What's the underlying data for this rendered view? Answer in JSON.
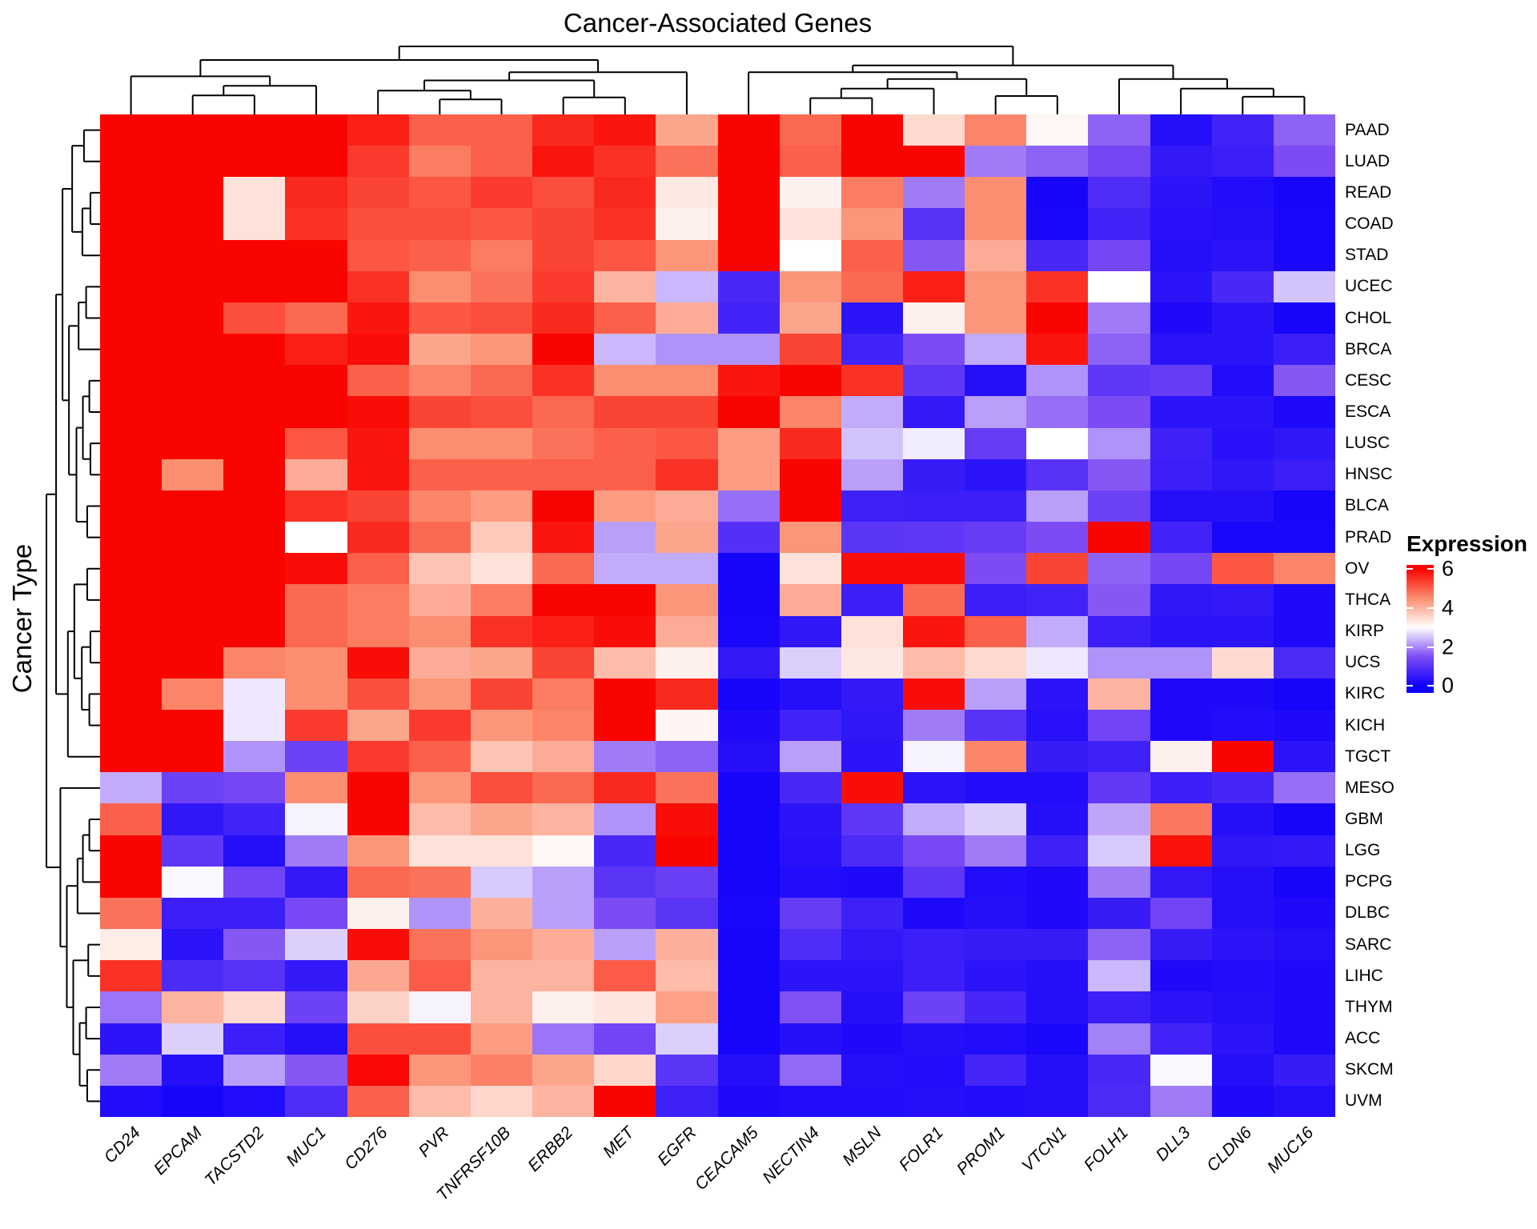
{
  "title": "Cancer-Associated Genes",
  "y_axis_label": "Cancer Type",
  "legend": {
    "title": "Expression",
    "ticks": [
      "6",
      "4",
      "2",
      "0"
    ]
  },
  "chart_data": {
    "type": "heatmap",
    "title": "Cancer-Associated Genes",
    "ylabel": "Cancer Type",
    "legend_title": "Expression",
    "legend_ticks": [
      6,
      4,
      2,
      0
    ],
    "value_domain": [
      0,
      6
    ],
    "color_scale": {
      "low": "#0F00FA",
      "mid": "#FFFFFF",
      "high": "#FA0400",
      "midpoint": 3,
      "stops": [
        [
          0,
          "#0F00FA"
        ],
        [
          1.5,
          "#7C4BF4"
        ],
        [
          3,
          "#FFFFFF"
        ],
        [
          4.5,
          "#FB8E70"
        ],
        [
          6,
          "#FA0400"
        ]
      ]
    },
    "columns": [
      "CD24",
      "EPCAM",
      "TACSTD2",
      "MUC1",
      "CD276",
      "PVR",
      "TNFRSF10B",
      "ERBB2",
      "MET",
      "EGFR",
      "CEACAM5",
      "NECTIN4",
      "MSLN",
      "FOLR1",
      "PROM1",
      "VTCN1",
      "FOLH1",
      "DLL3",
      "CLDN6",
      "MUC16"
    ],
    "rows": [
      "PAAD",
      "LUAD",
      "READ",
      "COAD",
      "STAD",
      "UCEC",
      "CHOL",
      "BRCA",
      "CESC",
      "ESCA",
      "LUSC",
      "HNSC",
      "BLCA",
      "PRAD",
      "OV",
      "THCA",
      "KIRP",
      "UCS",
      "KIRC",
      "KICH",
      "TGCT",
      "MESO",
      "GBM",
      "LGG",
      "PCPG",
      "DLBC",
      "SARC",
      "LIHC",
      "THYM",
      "ACC",
      "SKCM",
      "UVM"
    ],
    "values": [
      [
        6,
        6,
        6,
        6,
        5.7,
        5.0,
        5.0,
        5.6,
        5.8,
        4.2,
        6,
        4.9,
        6,
        3.5,
        4.6,
        3.1,
        1.7,
        0.3,
        0.7,
        1.7
      ],
      [
        6,
        6,
        6,
        6,
        5.4,
        4.7,
        5.0,
        5.8,
        5.5,
        4.8,
        6,
        5.0,
        6,
        6,
        1.9,
        1.7,
        1.4,
        0.5,
        0.6,
        1.5
      ],
      [
        6,
        6,
        3.4,
        5.6,
        5.3,
        5.1,
        5.4,
        5.2,
        5.6,
        3.3,
        6,
        3.2,
        4.7,
        1.9,
        4.5,
        0.1,
        0.9,
        0.4,
        0.25,
        0.1
      ],
      [
        6,
        6,
        3.4,
        5.5,
        5.2,
        5.2,
        5.1,
        5.3,
        5.5,
        3.2,
        6,
        3.4,
        4.4,
        1.0,
        4.5,
        0.15,
        0.7,
        0.35,
        0.3,
        0.15
      ],
      [
        6,
        6,
        6,
        6,
        5.1,
        5.0,
        4.7,
        5.3,
        5.1,
        4.4,
        6,
        3.0,
        5.0,
        1.6,
        4.1,
        0.8,
        1.4,
        0.3,
        0.4,
        0.15
      ],
      [
        6,
        6,
        6,
        6,
        5.5,
        4.5,
        4.8,
        5.4,
        4.0,
        2.4,
        0.8,
        4.4,
        4.9,
        5.7,
        4.4,
        5.5,
        3.0,
        0.4,
        0.8,
        2.5
      ],
      [
        6,
        6,
        5.2,
        4.9,
        5.8,
        5.1,
        5.2,
        5.6,
        5.0,
        4.1,
        0.7,
        4.2,
        0.4,
        3.2,
        4.4,
        6,
        1.9,
        0.2,
        0.4,
        0.1
      ],
      [
        6,
        6,
        6,
        5.7,
        5.9,
        4.2,
        4.4,
        6,
        2.4,
        2.1,
        2.1,
        5.3,
        0.7,
        1.5,
        2.3,
        5.8,
        1.7,
        0.4,
        0.4,
        0.6
      ],
      [
        6,
        6,
        6,
        6,
        5.0,
        4.6,
        4.9,
        5.5,
        4.5,
        4.5,
        5.8,
        6,
        5.5,
        1.1,
        0.3,
        2.1,
        1.1,
        1.2,
        0.25,
        1.6
      ],
      [
        6,
        6,
        6,
        6,
        5.9,
        5.3,
        5.2,
        4.9,
        5.3,
        5.3,
        6,
        4.6,
        2.3,
        0.5,
        2.2,
        1.8,
        1.5,
        0.4,
        0.4,
        0.2
      ],
      [
        6,
        6,
        6,
        5.1,
        5.8,
        4.5,
        4.5,
        4.8,
        5.0,
        5.1,
        4.3,
        5.6,
        2.5,
        2.85,
        1.2,
        3.0,
        2.1,
        0.65,
        0.35,
        0.45
      ],
      [
        6,
        4.5,
        6,
        4.1,
        5.8,
        5.0,
        5.0,
        5.0,
        5.0,
        5.5,
        4.3,
        6,
        2.2,
        0.55,
        0.4,
        1.0,
        1.6,
        0.6,
        0.45,
        0.6
      ],
      [
        6,
        6,
        6,
        5.5,
        5.3,
        4.6,
        4.3,
        6,
        4.3,
        4.1,
        1.8,
        6,
        0.65,
        0.6,
        0.6,
        2.2,
        1.3,
        0.3,
        0.3,
        0.1
      ],
      [
        6,
        6,
        6,
        3.0,
        5.6,
        4.9,
        3.7,
        5.8,
        2.2,
        4.2,
        0.95,
        4.4,
        1.05,
        1.1,
        1.2,
        1.5,
        6,
        0.7,
        0.15,
        0.15
      ],
      [
        6,
        6,
        6,
        5.9,
        5.0,
        3.8,
        3.4,
        4.9,
        2.3,
        2.3,
        0.1,
        3.4,
        5.9,
        5.9,
        1.5,
        5.3,
        1.7,
        1.4,
        5.1,
        4.6
      ],
      [
        6,
        6,
        6,
        4.9,
        4.7,
        4.1,
        4.7,
        6,
        6,
        4.4,
        0.1,
        4.1,
        0.6,
        4.9,
        0.6,
        0.7,
        1.6,
        0.45,
        0.5,
        0.2
      ],
      [
        6,
        6,
        6,
        4.9,
        4.7,
        4.5,
        5.5,
        5.7,
        5.9,
        4.1,
        0.15,
        0.45,
        3.4,
        5.8,
        5.0,
        2.3,
        0.6,
        0.4,
        0.4,
        0.2
      ],
      [
        6,
        6,
        4.6,
        4.5,
        5.9,
        4.1,
        4.2,
        5.3,
        3.9,
        3.2,
        0.5,
        2.6,
        3.3,
        3.9,
        3.5,
        2.8,
        2.1,
        2.1,
        3.5,
        0.85
      ],
      [
        6,
        4.6,
        2.8,
        4.5,
        5.2,
        4.4,
        5.3,
        4.7,
        6,
        5.6,
        0.1,
        0.3,
        0.5,
        5.9,
        2.2,
        0.4,
        4.0,
        0.2,
        0.2,
        0.1
      ],
      [
        6,
        6,
        2.8,
        5.4,
        4.2,
        5.4,
        4.4,
        4.6,
        6,
        3.15,
        0.2,
        0.7,
        0.45,
        1.9,
        1.0,
        0.35,
        1.35,
        0.2,
        0.25,
        0.2
      ],
      [
        6,
        6,
        2.1,
        1.3,
        5.4,
        5.0,
        3.8,
        4.1,
        1.9,
        1.7,
        0.3,
        2.2,
        0.4,
        2.9,
        4.6,
        0.55,
        0.65,
        3.2,
        6,
        0.4
      ],
      [
        2.3,
        1.3,
        1.4,
        4.5,
        6,
        4.4,
        5.2,
        4.9,
        5.6,
        4.8,
        0.1,
        0.8,
        5.9,
        0.4,
        0.25,
        0.25,
        1.15,
        0.6,
        0.75,
        1.8
      ],
      [
        5.0,
        0.45,
        0.7,
        2.9,
        6,
        3.9,
        4.2,
        4.0,
        2.1,
        5.9,
        0.1,
        0.4,
        1.1,
        2.3,
        2.6,
        0.3,
        2.25,
        4.75,
        0.3,
        0.1
      ],
      [
        6,
        1.1,
        0.3,
        1.9,
        4.4,
        3.4,
        3.4,
        3.1,
        0.8,
        6,
        0.1,
        0.35,
        0.85,
        1.45,
        1.9,
        0.65,
        2.55,
        5.85,
        0.45,
        0.5
      ],
      [
        6,
        2.95,
        1.35,
        0.5,
        4.9,
        4.8,
        2.55,
        2.2,
        1.05,
        1.25,
        0.1,
        0.25,
        0.2,
        1.1,
        0.25,
        0.2,
        1.9,
        0.5,
        0.3,
        0.1
      ],
      [
        4.8,
        0.6,
        0.6,
        1.45,
        3.2,
        2.1,
        4.05,
        2.2,
        1.5,
        1.05,
        0.15,
        1.2,
        0.65,
        0.2,
        0.3,
        0.2,
        0.55,
        1.35,
        0.3,
        0.2
      ],
      [
        3.25,
        0.4,
        1.6,
        2.6,
        5.9,
        4.8,
        4.4,
        4.1,
        2.2,
        4.05,
        0.1,
        0.9,
        0.5,
        0.6,
        0.55,
        0.55,
        1.7,
        0.55,
        0.4,
        0.3
      ],
      [
        5.5,
        0.85,
        1.0,
        0.5,
        4.15,
        5.05,
        4.0,
        4.0,
        5.05,
        3.9,
        0.1,
        0.4,
        0.4,
        0.6,
        0.4,
        0.3,
        2.4,
        0.2,
        0.25,
        0.2
      ],
      [
        1.85,
        4.0,
        3.5,
        1.3,
        3.6,
        2.9,
        4.0,
        3.2,
        3.35,
        4.25,
        0.1,
        1.55,
        0.3,
        1.3,
        0.75,
        0.3,
        0.6,
        0.4,
        0.3,
        0.2
      ],
      [
        0.4,
        2.6,
        0.6,
        0.3,
        5.2,
        5.2,
        4.3,
        1.85,
        1.35,
        2.6,
        0.1,
        0.3,
        0.2,
        0.3,
        0.25,
        0.15,
        1.95,
        0.7,
        0.4,
        0.2
      ],
      [
        1.9,
        0.3,
        2.2,
        1.6,
        5.95,
        4.4,
        4.65,
        4.2,
        3.55,
        1.05,
        0.3,
        1.75,
        0.3,
        0.25,
        0.75,
        0.3,
        0.8,
        2.95,
        0.3,
        0.55
      ],
      [
        0.25,
        0.1,
        0.25,
        0.9,
        5.0,
        3.9,
        3.55,
        4.0,
        6,
        0.65,
        0.2,
        0.25,
        0.25,
        0.3,
        0.25,
        0.3,
        0.85,
        1.9,
        0.2,
        0.3
      ]
    ],
    "col_dendrogram": [
      [
        [
          "CD24",
          [
            [
              "EPCAM",
              "TACSTD2",
              0.28
            ],
            "MUC1",
            0.42
          ],
          0.56
        ],
        [
          [
            [
              "CD276",
              [
                "PVR",
                "TNFRSF10B",
                0.22
              ],
              0.35
            ],
            [
              "ERBB2",
              "MET",
              0.25
            ],
            0.5
          ],
          "EGFR",
          0.62
        ],
        0.8
      ],
      [
        [
          "CEACAM5",
          [
            [
              [
                "NECTIN4",
                "MSLN",
                0.24
              ],
              "FOLR1",
              0.38
            ],
            [
              "PROM1",
              "VTCN1",
              0.27
            ],
            0.52
          ],
          0.62
        ],
        [
          "FOLH1",
          [
            "DLL3",
            [
              "CLDN6",
              "MUC16",
              0.26
            ],
            0.38
          ],
          0.52
        ],
        0.72
      ],
      1.0
    ],
    "row_dendrogram": [
      [
        [
          [
            [
              "PAAD",
              "LUAD",
              0.3
            ],
            [
              [
                "READ",
                "COAD",
                0.18
              ],
              "STAD",
              0.33
            ],
            0.52
          ],
          [
            [
              [
                "UCEC",
                "CHOL",
                0.26
              ],
              "BRCA",
              0.4
            ],
            [
              [
                [
                  "CESC",
                  "ESCA",
                  0.2
                ],
                [
                  "LUSC",
                  "HNSC",
                  0.18
                ],
                0.32
              ],
              [
                "BLCA",
                "PRAD",
                0.24
              ],
              0.44
            ],
            0.58
          ],
          0.7
        ],
        [
          [
            [
              "OV",
              "THCA",
              0.24
            ],
            [
              [
                "KIRP",
                "UCS",
                0.18
              ],
              [
                "KIRC",
                "KICH",
                0.2
              ],
              0.34
            ],
            0.48
          ],
          "TGCT",
          0.6
        ],
        0.82
      ],
      [
        "MESO",
        [
          [
            [
              [
                "GBM",
                "LGG",
                0.2
              ],
              "PCPG",
              0.32
            ],
            "DLBC",
            0.42
          ],
          [
            [
              "SARC",
              "LIHC",
              0.22
            ],
            [
              [
                "THYM",
                "ACC",
                0.26
              ],
              [
                "SKCM",
                "UVM",
                0.24
              ],
              0.38
            ],
            0.5
          ],
          0.62
        ],
        0.74
      ],
      1.0
    ],
    "grid": false,
    "legend_position": "right"
  }
}
